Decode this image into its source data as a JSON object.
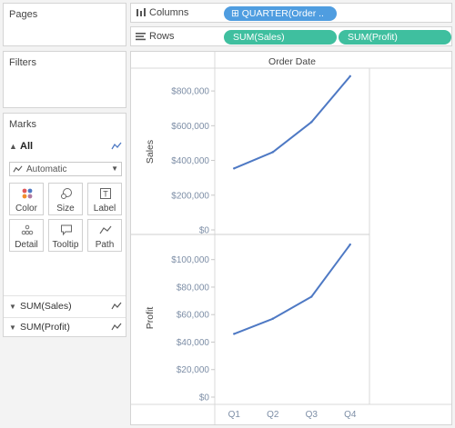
{
  "cards": {
    "pages": "Pages",
    "filters": "Filters",
    "marks": "Marks"
  },
  "marks": {
    "all_label": "All",
    "mark_type": "Automatic",
    "buttons": [
      {
        "label": "Color",
        "icon": "color-dots-icon"
      },
      {
        "label": "Size",
        "icon": "size-icon"
      },
      {
        "label": "Label",
        "icon": "label-icon"
      },
      {
        "label": "Detail",
        "icon": "detail-dots-icon"
      },
      {
        "label": "Tooltip",
        "icon": "tooltip-icon"
      },
      {
        "label": "Path",
        "icon": "path-icon"
      }
    ],
    "fields": [
      "SUM(Sales)",
      "SUM(Profit)"
    ]
  },
  "shelves": {
    "columns_label": "Columns",
    "rows_label": "Rows",
    "column_pill": "⊞ QUARTER(Order ..",
    "row_pills": [
      "SUM(Sales)",
      "SUM(Profit)"
    ]
  },
  "colors": {
    "line": "#4e79c4",
    "pill_blue": "#4f9de0",
    "pill_green": "#3fbf9f",
    "axis_text": "#7d8ea6"
  },
  "chart_data": {
    "type": "line",
    "header": "Order Date",
    "categories": [
      "Q1",
      "Q2",
      "Q3",
      "Q4"
    ],
    "panes": [
      {
        "ylabel": "Sales",
        "values": [
          354000,
          448000,
          621000,
          885000
        ],
        "ylim": [
          0,
          900000
        ],
        "ticks": [
          0,
          200000,
          400000,
          600000,
          800000
        ],
        "tick_labels": [
          "$0",
          "$200,000",
          "$400,000",
          "$600,000",
          "$800,000"
        ]
      },
      {
        "ylabel": "Profit",
        "values": [
          46000,
          57000,
          73000,
          111000
        ],
        "ylim": [
          0,
          115000
        ],
        "ticks": [
          0,
          20000,
          40000,
          60000,
          80000,
          100000
        ],
        "tick_labels": [
          "$0",
          "$20,000",
          "$40,000",
          "$60,000",
          "$80,000",
          "$100,000"
        ]
      }
    ]
  }
}
